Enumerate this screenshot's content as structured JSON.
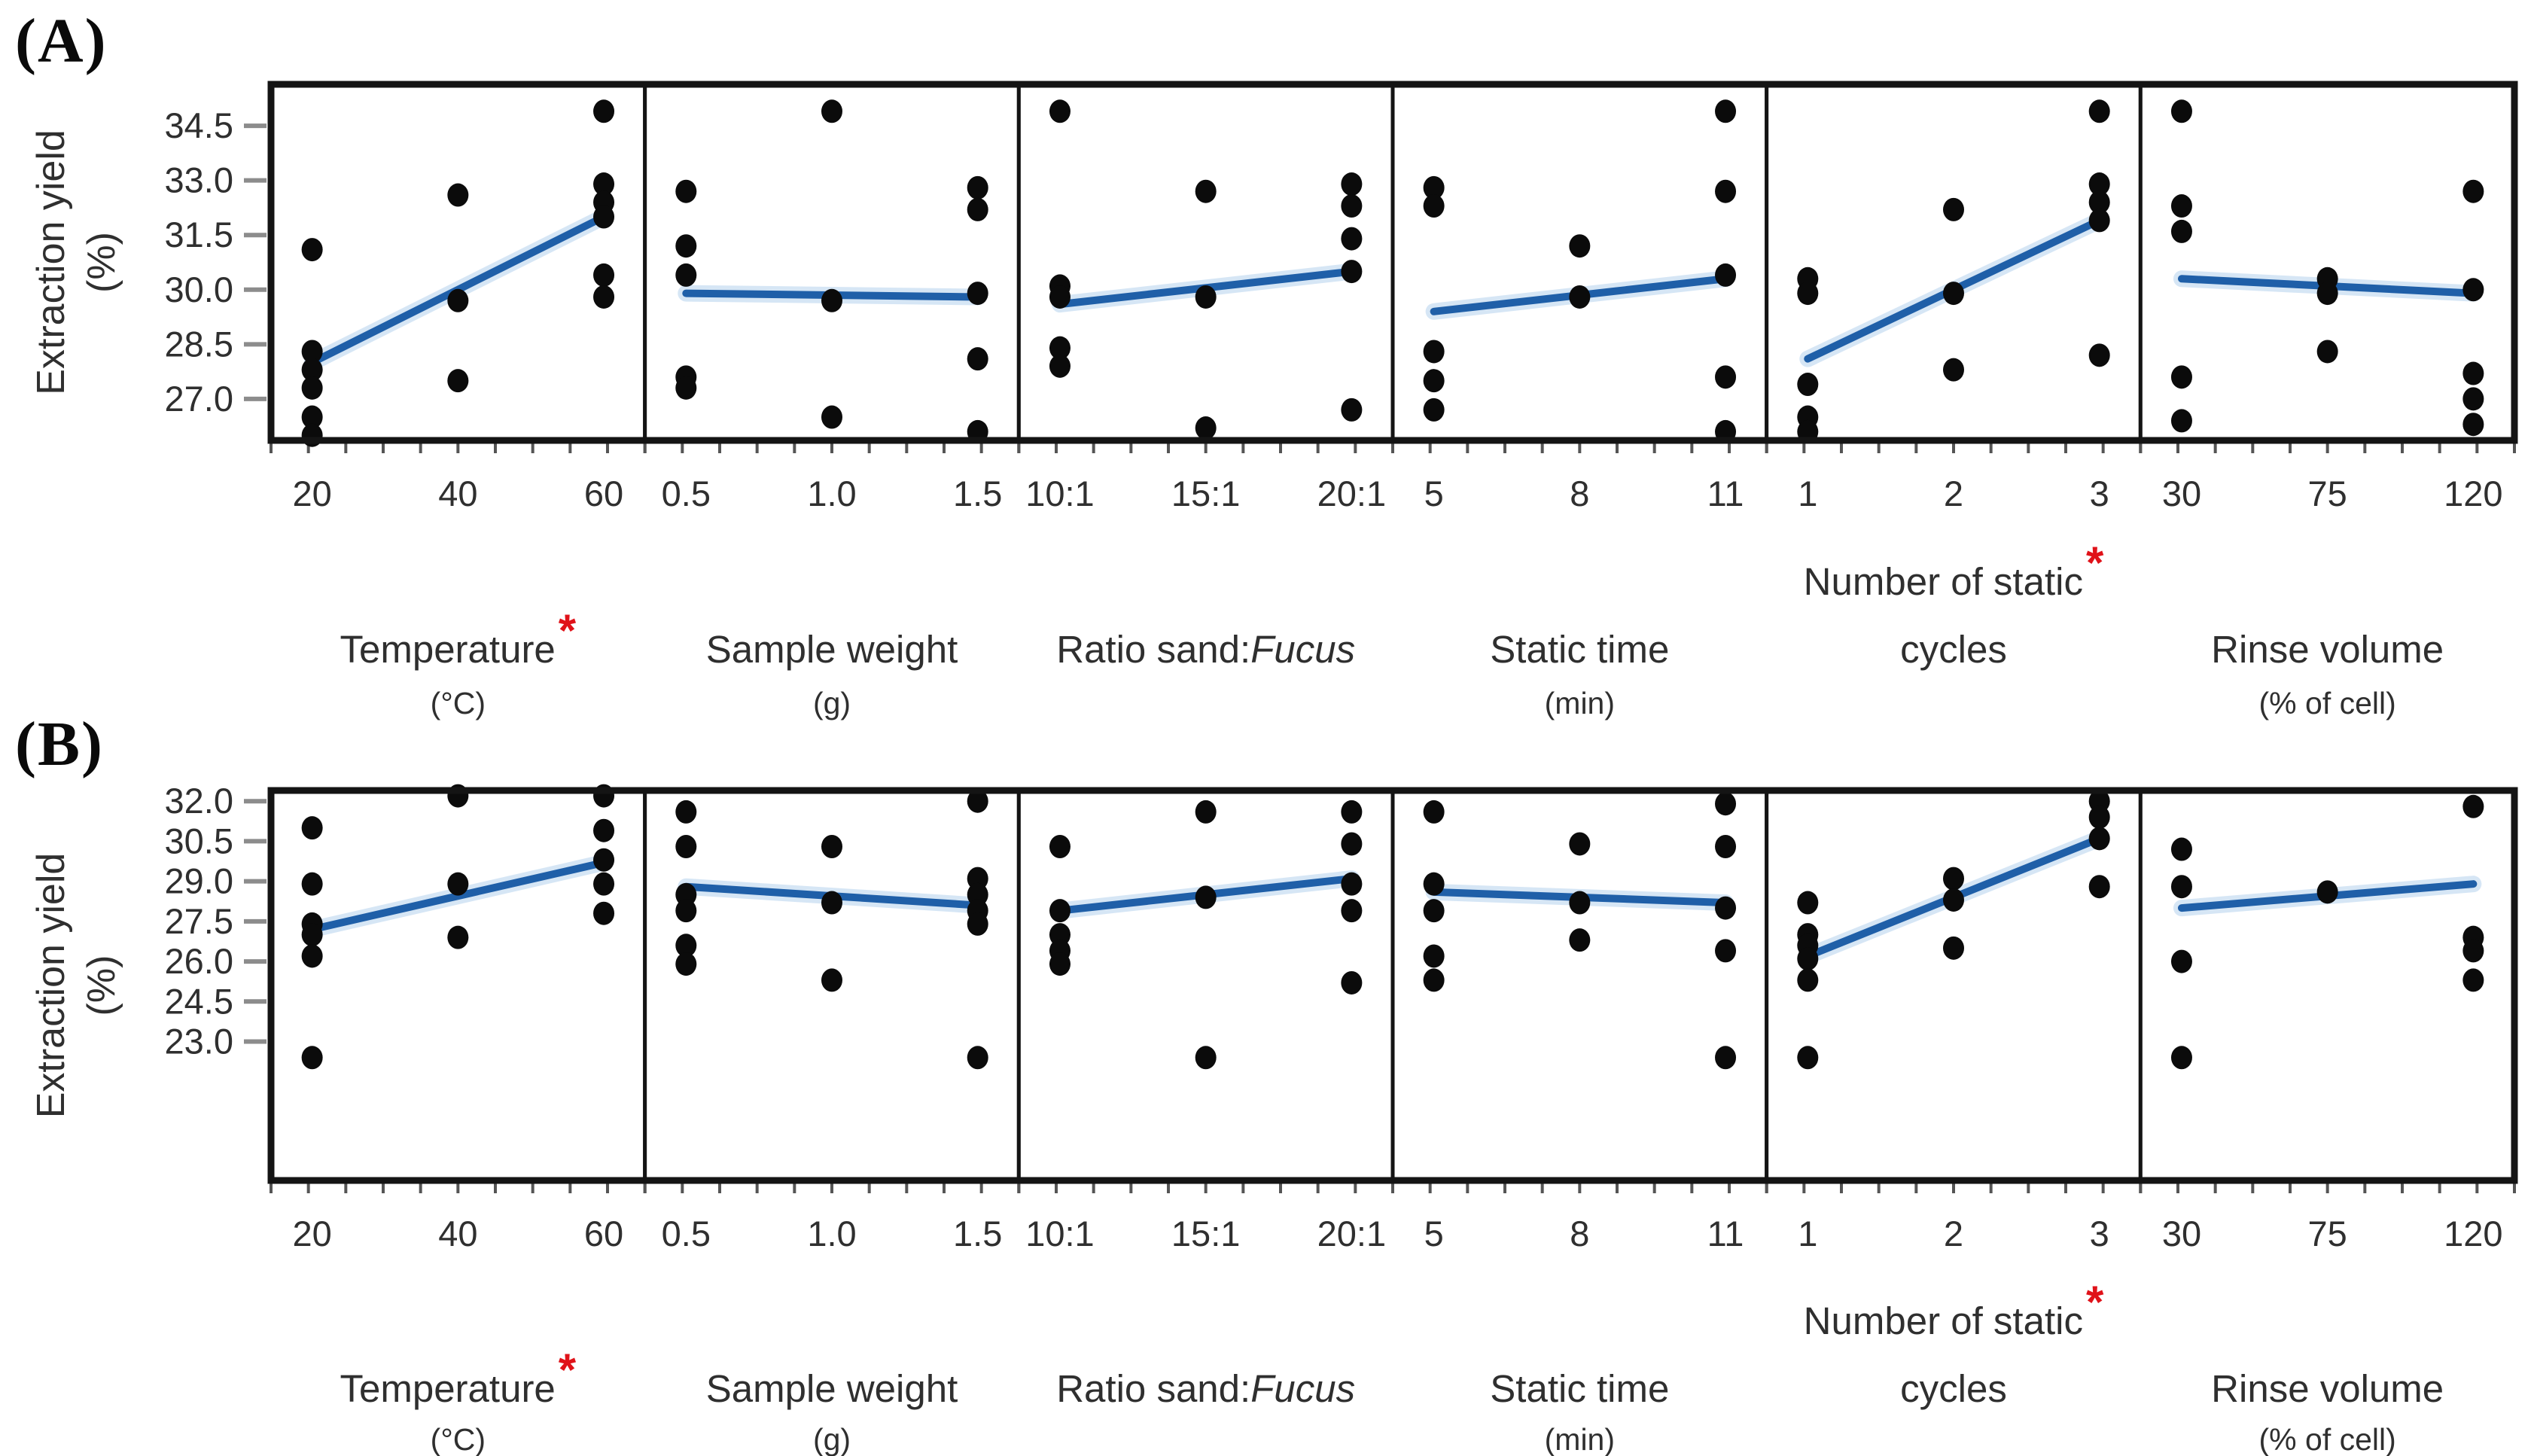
{
  "figure": {
    "accent_line_color": "#1f5fa8",
    "line_halo_color": "#bcd7f0",
    "dot_color": "#0b0b0b",
    "asterisk_color": "#e01219",
    "text_color": "#2f2f2f",
    "tick_color": "#8c8c8c",
    "minor_tick_color": "#555555",
    "border_color": "#141414",
    "background": "#ffffff"
  },
  "chart_data": [
    {
      "id": "A",
      "row_label": "(A)",
      "type": "scatter",
      "title": "",
      "ylabel_lines": [
        "Extraction yield",
        "(%)"
      ],
      "grid": false,
      "legend": null,
      "yticks": [
        34.5,
        33.0,
        31.5,
        30.0,
        28.5,
        27.0
      ],
      "ylim": [
        25.86,
        35.64
      ],
      "panels": [
        {
          "key": "temperature",
          "label": {
            "lines": [
              {
                "parts": [
                  {
                    "t": "Temperature"
                  }
                ],
                "asterisk": true
              }
            ],
            "unit": "(°C)"
          },
          "levels": [
            "20",
            "40",
            "60"
          ],
          "values": [
            [
              31.1,
              28.3,
              27.8,
              27.3,
              26.5,
              26.0
            ],
            [
              32.6,
              29.7,
              27.5
            ],
            [
              34.9,
              32.9,
              32.4,
              32.0,
              30.4,
              29.8
            ]
          ],
          "trend": [
            28.0,
            32.0
          ]
        },
        {
          "key": "sample-weight",
          "label": {
            "lines": [
              {
                "parts": [
                  {
                    "t": "Sample weight"
                  }
                ],
                "asterisk": false
              }
            ],
            "unit": "(g)"
          },
          "levels": [
            "0.5",
            "1.0",
            "1.5"
          ],
          "values": [
            [
              32.7,
              31.2,
              30.4,
              27.6,
              27.3
            ],
            [
              34.9,
              29.7,
              26.5
            ],
            [
              32.8,
              32.2,
              29.9,
              28.1,
              26.1
            ]
          ],
          "trend": [
            29.9,
            29.8
          ]
        },
        {
          "key": "ratio-sand-fucus",
          "label": {
            "lines": [
              {
                "parts": [
                  {
                    "t": "Ratio sand:"
                  },
                  {
                    "t": "Fucus",
                    "italic": true
                  }
                ],
                "asterisk": false
              }
            ],
            "unit": null
          },
          "levels": [
            "10:1",
            "15:1",
            "20:1"
          ],
          "values": [
            [
              34.9,
              30.1,
              29.8,
              28.4,
              27.9
            ],
            [
              32.7,
              29.8,
              26.2
            ],
            [
              32.9,
              32.3,
              31.4,
              30.5,
              26.7
            ]
          ],
          "trend": [
            29.6,
            30.5
          ]
        },
        {
          "key": "static-time",
          "label": {
            "lines": [
              {
                "parts": [
                  {
                    "t": "Static time"
                  }
                ],
                "asterisk": false
              }
            ],
            "unit": "(min)"
          },
          "levels": [
            "5",
            "8",
            "11"
          ],
          "values": [
            [
              32.8,
              32.3,
              28.3,
              27.5,
              26.7
            ],
            [
              31.2,
              29.8
            ],
            [
              34.9,
              32.7,
              30.4,
              27.6,
              26.1
            ]
          ],
          "trend": [
            29.4,
            30.3
          ]
        },
        {
          "key": "static-cycles",
          "label": {
            "lines": [
              {
                "parts": [
                  {
                    "t": "Number of static"
                  }
                ],
                "asterisk": true
              },
              {
                "parts": [
                  {
                    "t": "cycles"
                  }
                ],
                "asterisk": false
              }
            ],
            "unit": null
          },
          "levels": [
            "1",
            "2",
            "3"
          ],
          "values": [
            [
              30.3,
              29.9,
              27.4,
              26.5,
              26.1
            ],
            [
              32.2,
              29.9,
              27.8
            ],
            [
              34.9,
              32.9,
              32.4,
              31.9,
              28.2
            ]
          ],
          "trend": [
            28.1,
            31.9
          ]
        },
        {
          "key": "rinse-volume",
          "label": {
            "lines": [
              {
                "parts": [
                  {
                    "t": "Rinse volume"
                  }
                ],
                "asterisk": false
              }
            ],
            "unit": "(% of cell)"
          },
          "levels": [
            "30",
            "75",
            "120"
          ],
          "values": [
            [
              34.9,
              32.3,
              31.6,
              27.6,
              26.4
            ],
            [
              30.3,
              29.9,
              28.3
            ],
            [
              32.7,
              30.0,
              27.7,
              27.0,
              26.3
            ]
          ],
          "trend": [
            30.3,
            29.9
          ]
        }
      ]
    },
    {
      "id": "B",
      "row_label": "(B)",
      "type": "scatter",
      "title": "",
      "ylabel_lines": [
        "Extraction yield",
        "(%)"
      ],
      "grid": false,
      "legend": null,
      "yticks": [
        32.0,
        30.5,
        29.0,
        27.5,
        26.0,
        24.5,
        23.0
      ],
      "ylim": [
        17.8,
        32.4
      ],
      "panels": [
        {
          "key": "temperature",
          "label": {
            "lines": [
              {
                "parts": [
                  {
                    "t": "Temperature"
                  }
                ],
                "asterisk": true
              }
            ],
            "unit": "(°C)"
          },
          "levels": [
            "20",
            "40",
            "60"
          ],
          "values": [
            [
              31.0,
              28.9,
              27.4,
              27.0,
              26.2,
              22.4
            ],
            [
              32.2,
              28.9,
              26.9
            ],
            [
              32.2,
              30.9,
              29.8,
              28.9,
              27.8
            ]
          ],
          "trend": [
            27.2,
            29.7
          ]
        },
        {
          "key": "sample-weight",
          "label": {
            "lines": [
              {
                "parts": [
                  {
                    "t": "Sample weight"
                  }
                ],
                "asterisk": false
              }
            ],
            "unit": "(g)"
          },
          "levels": [
            "0.5",
            "1.0",
            "1.5"
          ],
          "values": [
            [
              31.6,
              30.3,
              28.5,
              27.9,
              26.6,
              25.9
            ],
            [
              30.3,
              28.2,
              25.3
            ],
            [
              32.0,
              29.1,
              28.5,
              27.9,
              27.4,
              22.4
            ]
          ],
          "trend": [
            28.8,
            28.1
          ]
        },
        {
          "key": "ratio-sand-fucus",
          "label": {
            "lines": [
              {
                "parts": [
                  {
                    "t": "Ratio sand:"
                  },
                  {
                    "t": "Fucus",
                    "italic": true
                  }
                ],
                "asterisk": false
              }
            ],
            "unit": null
          },
          "levels": [
            "10:1",
            "15:1",
            "20:1"
          ],
          "values": [
            [
              30.3,
              27.9,
              27.0,
              26.4,
              25.9
            ],
            [
              31.6,
              28.4,
              22.4
            ],
            [
              31.6,
              30.4,
              28.9,
              27.9,
              25.2
            ]
          ],
          "trend": [
            27.9,
            29.1
          ]
        },
        {
          "key": "static-time",
          "label": {
            "lines": [
              {
                "parts": [
                  {
                    "t": "Static time"
                  }
                ],
                "asterisk": false
              }
            ],
            "unit": "(min)"
          },
          "levels": [
            "5",
            "8",
            "11"
          ],
          "values": [
            [
              31.6,
              28.9,
              27.9,
              26.2,
              25.3
            ],
            [
              30.4,
              28.2,
              26.8
            ],
            [
              31.9,
              30.3,
              28.0,
              26.4,
              22.4
            ]
          ],
          "trend": [
            28.6,
            28.2
          ]
        },
        {
          "key": "static-cycles",
          "label": {
            "lines": [
              {
                "parts": [
                  {
                    "t": "Number of static"
                  }
                ],
                "asterisk": true
              },
              {
                "parts": [
                  {
                    "t": "cycles"
                  }
                ],
                "asterisk": false
              }
            ],
            "unit": null
          },
          "levels": [
            "1",
            "2",
            "3"
          ],
          "values": [
            [
              28.2,
              27.0,
              26.6,
              26.1,
              25.3,
              22.4
            ],
            [
              29.1,
              28.3,
              26.5
            ],
            [
              32.0,
              31.4,
              30.6,
              28.8
            ]
          ],
          "trend": [
            26.2,
            30.6
          ]
        },
        {
          "key": "rinse-volume",
          "label": {
            "lines": [
              {
                "parts": [
                  {
                    "t": "Rinse volume"
                  }
                ],
                "asterisk": false
              }
            ],
            "unit": "(% of cell)"
          },
          "levels": [
            "30",
            "75",
            "120"
          ],
          "values": [
            [
              30.2,
              28.8,
              26.0,
              22.4
            ],
            [
              28.6
            ],
            [
              31.8,
              26.9,
              26.4,
              25.3
            ]
          ],
          "trend": [
            28.0,
            28.9
          ]
        }
      ]
    }
  ]
}
